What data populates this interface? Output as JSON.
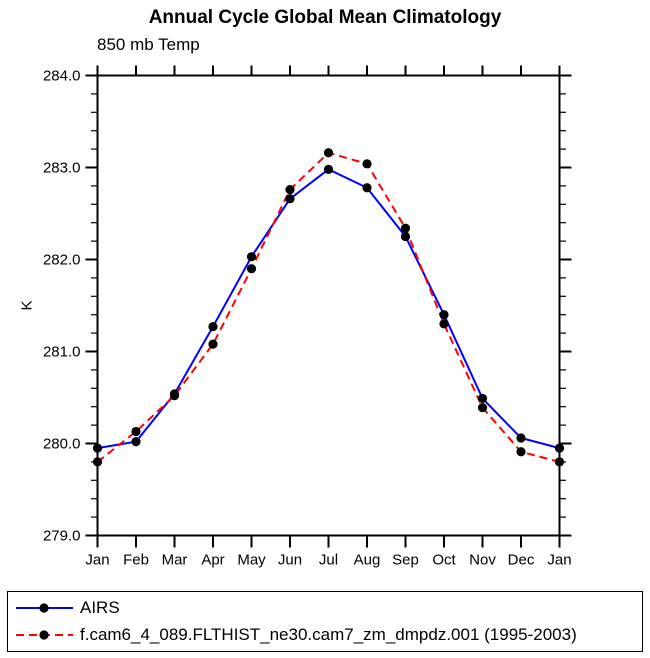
{
  "chart_data": {
    "type": "line",
    "title": "Annual Cycle Global Mean Climatology",
    "subtitle": "850 mb Temp",
    "ylabel": "K",
    "x_categories": [
      "Jan",
      "Feb",
      "Mar",
      "Apr",
      "May",
      "Jun",
      "Jul",
      "Aug",
      "Sep",
      "Oct",
      "Nov",
      "Dec",
      "Jan"
    ],
    "ylim": [
      279.0,
      284.0
    ],
    "y_major_tick_step": 1.0,
    "y_minor_tick_step": 0.2,
    "y_tick_labels": [
      "279.0",
      "280.0",
      "281.0",
      "282.0",
      "283.0",
      "284.0"
    ],
    "grid": false,
    "axis_color": "#000000",
    "legend_position": "bottom-box",
    "series": [
      {
        "name": "AIRS",
        "color": "#0000ff",
        "line_style": "solid",
        "marker": "filled-circle",
        "marker_color": "#000000",
        "values": [
          279.95,
          280.02,
          280.54,
          281.27,
          282.03,
          282.66,
          282.98,
          282.78,
          282.25,
          281.4,
          280.49,
          280.06,
          279.95
        ]
      },
      {
        "name": "f.cam6_4_089.FLTHIST_ne30.cam7_zm_dmpdz.001 (1995-2003)",
        "color": "#ff0000",
        "line_style": "dashed",
        "marker": "filled-circle",
        "marker_color": "#000000",
        "values": [
          279.8,
          280.13,
          280.52,
          281.08,
          281.9,
          282.76,
          283.16,
          283.04,
          282.34,
          281.3,
          280.39,
          279.91,
          279.8
        ]
      }
    ]
  }
}
